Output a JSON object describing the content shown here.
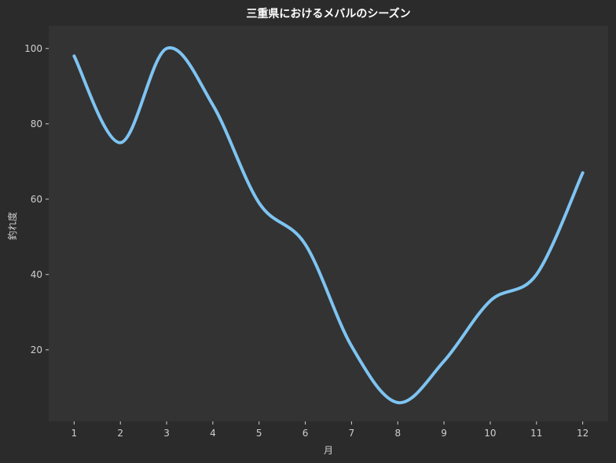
{
  "chart_data": {
    "type": "line",
    "title": "三重県におけるメバルのシーズン",
    "xlabel": "月",
    "ylabel": "釣れ度",
    "x": [
      1,
      2,
      3,
      4,
      5,
      6,
      7,
      8,
      9,
      10,
      11,
      12
    ],
    "series": [
      {
        "values": [
          98,
          75,
          100,
          85,
          59,
          48,
          21,
          6,
          17,
          33,
          40,
          67
        ]
      }
    ],
    "xticks": [
      "1",
      "2",
      "3",
      "4",
      "5",
      "6",
      "7",
      "8",
      "9",
      "10",
      "11",
      "12"
    ],
    "yticks": [
      "20",
      "40",
      "60",
      "80",
      "100"
    ],
    "xlim": [
      0.45,
      12.55
    ],
    "ylim": [
      1,
      106
    ],
    "grid": false,
    "colors": {
      "background": "#2b2b2b",
      "plot_background": "#333333",
      "line": "#7ec4f2",
      "text": "#cfcfcf",
      "title": "#ffffff"
    }
  }
}
